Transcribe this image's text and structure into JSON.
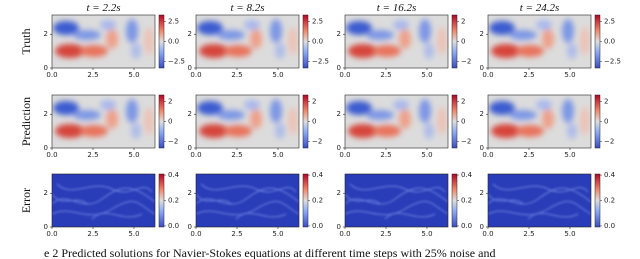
{
  "columns": [
    {
      "title": "t = 2.2s"
    },
    {
      "title": "t = 8.2s"
    },
    {
      "title": "t = 16.2s"
    },
    {
      "title": "t = 24.2s"
    }
  ],
  "rows": [
    {
      "label": "Truth",
      "colorbar_ticks": [
        [
          "2.5",
          "0.0",
          "−2.5"
        ],
        [
          "2.5",
          "0.0",
          "−2.5"
        ],
        [
          "2",
          "0",
          "−2"
        ],
        [
          "2.5",
          "0.0",
          "−2.5"
        ]
      ]
    },
    {
      "label": "Prediction",
      "colorbar_ticks": [
        [
          "2",
          "0",
          "−2"
        ],
        [
          "2",
          "0",
          "−2"
        ],
        [
          "2",
          "0",
          "−2"
        ],
        [
          "2",
          "0",
          "−2"
        ]
      ]
    },
    {
      "label": "Error",
      "colorbar_ticks": [
        [
          "0.4",
          "0.2",
          "0.0"
        ],
        [
          "0.4",
          "0.2",
          "0.0"
        ],
        [
          "0.4",
          "0.2",
          "0.0"
        ],
        [
          "0.4",
          "0.2",
          "0.0"
        ]
      ]
    }
  ],
  "x_ticks": [
    "0.0",
    "2.5",
    "5.0"
  ],
  "y_ticks": [
    "0",
    "2"
  ],
  "caption": "e 2 Predicted solutions for Navier-Stokes equations at different time steps with 25% noise and"
}
